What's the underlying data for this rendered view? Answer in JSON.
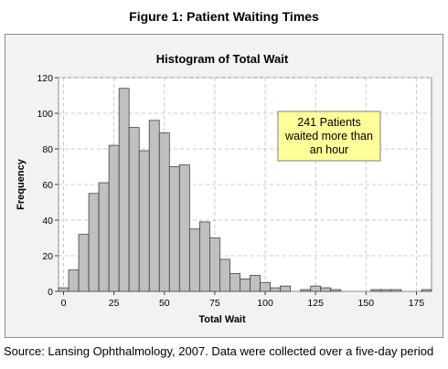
{
  "figure": {
    "title": "Figure 1: Patient Waiting Times",
    "source": "Source: Lansing Ophthalmology, 2007. Data were collected over a five-day period"
  },
  "colors": {
    "panel_bg": "#f2f2f2",
    "plot_bg": "#ffffff",
    "bar_fill": "#c0c0c0",
    "bar_stroke": "#404040",
    "grid": "#c8c8c8",
    "annotation_bg": "#ffff99"
  },
  "chart_data": {
    "type": "bar",
    "title": "Histogram of Total Wait",
    "xlabel": "Total Wait",
    "ylabel": "Frequency",
    "xlim": [
      -2.5,
      182.5
    ],
    "ylim": [
      0,
      120
    ],
    "bin_width": 5,
    "x_ticks": [
      0,
      25,
      50,
      75,
      100,
      125,
      150,
      175
    ],
    "y_ticks": [
      0,
      20,
      40,
      60,
      80,
      100,
      120
    ],
    "grid": true,
    "bins": [
      0,
      5,
      10,
      15,
      20,
      25,
      30,
      35,
      40,
      45,
      50,
      55,
      60,
      65,
      70,
      75,
      80,
      85,
      90,
      95,
      100,
      105,
      110,
      115,
      120,
      125,
      130,
      135,
      140,
      145,
      150,
      155,
      160,
      165,
      170,
      175,
      180
    ],
    "values": [
      2,
      12,
      32,
      55,
      61,
      82,
      114,
      92,
      79,
      96,
      89,
      70,
      71,
      35,
      39,
      30,
      18,
      10,
      7,
      9,
      5,
      2,
      3,
      0,
      1,
      3,
      2,
      1,
      0,
      0,
      0,
      1,
      1,
      1,
      0,
      0,
      1
    ],
    "annotation": "241 Patients waited more than an hour"
  }
}
